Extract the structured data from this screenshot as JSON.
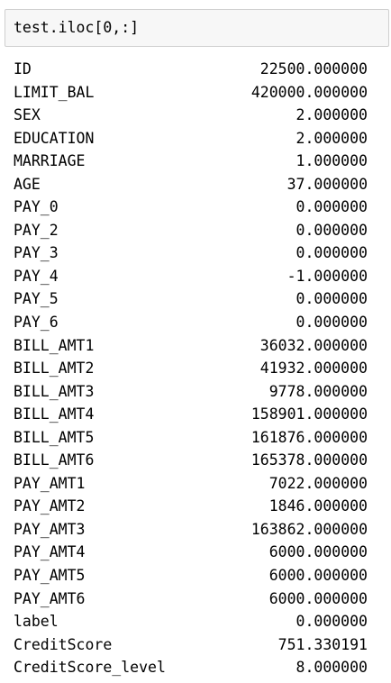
{
  "input_cell": {
    "code": "test.iloc[0,:]"
  },
  "output": {
    "rows": [
      {
        "key": "ID",
        "value": "22500.000000"
      },
      {
        "key": "LIMIT_BAL",
        "value": "420000.000000"
      },
      {
        "key": "SEX",
        "value": "2.000000"
      },
      {
        "key": "EDUCATION",
        "value": "2.000000"
      },
      {
        "key": "MARRIAGE",
        "value": "1.000000"
      },
      {
        "key": "AGE",
        "value": "37.000000"
      },
      {
        "key": "PAY_0",
        "value": "0.000000"
      },
      {
        "key": "PAY_2",
        "value": "0.000000"
      },
      {
        "key": "PAY_3",
        "value": "0.000000"
      },
      {
        "key": "PAY_4",
        "value": "-1.000000"
      },
      {
        "key": "PAY_5",
        "value": "0.000000"
      },
      {
        "key": "PAY_6",
        "value": "0.000000"
      },
      {
        "key": "BILL_AMT1",
        "value": "36032.000000"
      },
      {
        "key": "BILL_AMT2",
        "value": "41932.000000"
      },
      {
        "key": "BILL_AMT3",
        "value": "9778.000000"
      },
      {
        "key": "BILL_AMT4",
        "value": "158901.000000"
      },
      {
        "key": "BILL_AMT5",
        "value": "161876.000000"
      },
      {
        "key": "BILL_AMT6",
        "value": "165378.000000"
      },
      {
        "key": "PAY_AMT1",
        "value": "7022.000000"
      },
      {
        "key": "PAY_AMT2",
        "value": "1846.000000"
      },
      {
        "key": "PAY_AMT3",
        "value": "163862.000000"
      },
      {
        "key": "PAY_AMT4",
        "value": "6000.000000"
      },
      {
        "key": "PAY_AMT5",
        "value": "6000.000000"
      },
      {
        "key": "PAY_AMT6",
        "value": "6000.000000"
      },
      {
        "key": "label",
        "value": "0.000000"
      },
      {
        "key": "CreditScore",
        "value": "751.330191"
      },
      {
        "key": "CreditScore_level",
        "value": "8.000000"
      }
    ]
  }
}
